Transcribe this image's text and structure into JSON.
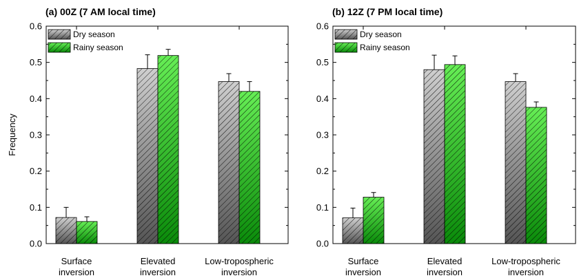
{
  "colors": {
    "dry_light": "#cfcfcf",
    "dry_dark": "#555555",
    "rainy_light": "#66ee55",
    "rainy_dark": "#0a8a0a",
    "hatch": "#000000"
  },
  "chart_data": [
    {
      "type": "bar",
      "title": "(a) 00Z (7 AM local time)",
      "ylabel": "Frequency",
      "xlabel": "",
      "ylim": [
        0,
        0.6
      ],
      "yticks": [
        "0.0",
        "0.1",
        "0.2",
        "0.3",
        "0.4",
        "0.5",
        "0.6"
      ],
      "categories": [
        [
          "Surface",
          "inversion"
        ],
        [
          "Elevated",
          "inversion"
        ],
        [
          "Low-tropospheric",
          "inversion"
        ]
      ],
      "legend_position": "top-left",
      "grid": false,
      "series": [
        {
          "name": "Dry season",
          "values": [
            0.072,
            0.483,
            0.447
          ],
          "errors": [
            0.028,
            0.038,
            0.022
          ]
        },
        {
          "name": "Rainy season",
          "values": [
            0.061,
            0.519,
            0.42
          ],
          "errors": [
            0.013,
            0.017,
            0.027
          ]
        }
      ]
    },
    {
      "type": "bar",
      "title": "(b) 12Z (7 PM local time)",
      "ylabel": "",
      "xlabel": "",
      "ylim": [
        0,
        0.6
      ],
      "yticks": [
        "0.0",
        "0.1",
        "0.2",
        "0.3",
        "0.4",
        "0.5",
        "0.6"
      ],
      "categories": [
        [
          "Surface",
          "inversion"
        ],
        [
          "Elevated",
          "inversion"
        ],
        [
          "Low-tropospheric",
          "inversion"
        ]
      ],
      "legend_position": "top-left",
      "grid": false,
      "series": [
        {
          "name": "Dry season",
          "values": [
            0.071,
            0.48,
            0.447
          ],
          "errors": [
            0.027,
            0.04,
            0.022
          ]
        },
        {
          "name": "Rainy season",
          "values": [
            0.128,
            0.494,
            0.376
          ],
          "errors": [
            0.013,
            0.024,
            0.015
          ]
        }
      ]
    }
  ]
}
